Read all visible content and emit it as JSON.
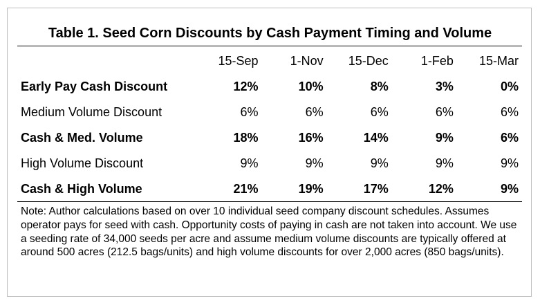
{
  "title": "Table 1. Seed Corn Discounts by Cash Payment Timing and Volume",
  "columns": [
    "15-Sep",
    "1-Nov",
    "15-Dec",
    "1-Feb",
    "15-Mar"
  ],
  "rows": [
    {
      "label": "Early Pay Cash Discount",
      "bold": true,
      "values": [
        "12%",
        "10%",
        "8%",
        "3%",
        "0%"
      ]
    },
    {
      "label": "Medium Volume Discount",
      "bold": false,
      "values": [
        "6%",
        "6%",
        "6%",
        "6%",
        "6%"
      ]
    },
    {
      "label": "Cash & Med. Volume",
      "bold": true,
      "values": [
        "18%",
        "16%",
        "14%",
        "9%",
        "6%"
      ]
    },
    {
      "label": "High Volume Discount",
      "bold": false,
      "values": [
        "9%",
        "9%",
        "9%",
        "9%",
        "9%"
      ]
    },
    {
      "label": "Cash & High Volume",
      "bold": true,
      "values": [
        "21%",
        "19%",
        "17%",
        "12%",
        "9%"
      ]
    }
  ],
  "note": "Note: Author calculations based on over 10 individual seed company discount schedules. Assumes operator pays for seed with cash. Opportunity costs of paying in cash are not taken into account. We use a seeding rate of 34,000 seeds per acre and assume medium volume discounts are typically offered at around 500 acres (212.5 bags/units) and high volume discounts for over 2,000 acres (850 bags/units)."
}
